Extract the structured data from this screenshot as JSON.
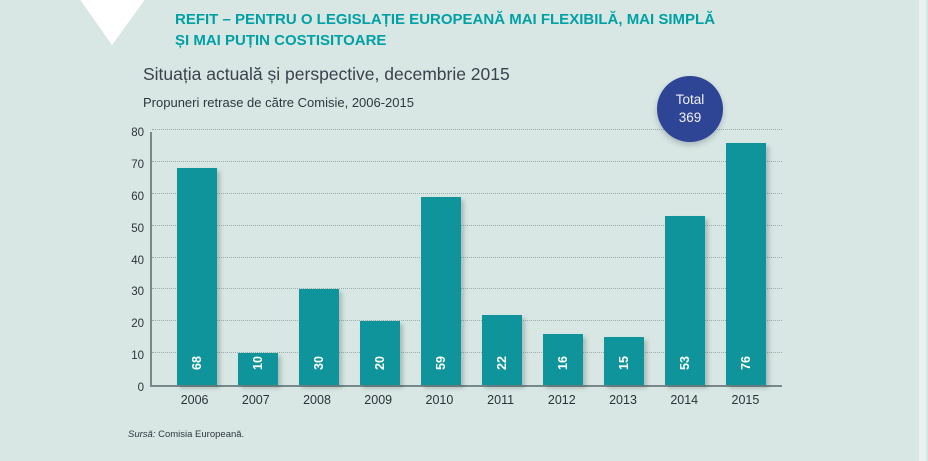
{
  "header": {
    "title_line1": "REFIT – PENTRU O LEGISLAȚIE EUROPEANĂ MAI FLEXIBILĂ, MAI SIMPLĂ",
    "title_line2": "ȘI MAI PUȚIN COSTISITOARE",
    "subtitle": "Situația actuală și perspective, decembrie 2015"
  },
  "chart_data": {
    "type": "bar",
    "title": "Propuneri retrase de către Comisie, 2006-2015",
    "categories": [
      "2006",
      "2007",
      "2008",
      "2009",
      "2010",
      "2011",
      "2012",
      "2013",
      "2014",
      "2015"
    ],
    "values": [
      68,
      10,
      30,
      20,
      59,
      22,
      16,
      15,
      53,
      76
    ],
    "xlabel": "",
    "ylabel": "",
    "ylim": [
      0,
      80
    ],
    "yticks": [
      0,
      10,
      20,
      30,
      40,
      50,
      60,
      70,
      80
    ],
    "grid": "horizontal dotted",
    "legend": "none",
    "bar_value_label_style": "white, bold, rotated 90° counterclockwise, inside bar near bottom"
  },
  "badge": {
    "label": "Total",
    "value": "369"
  },
  "source": {
    "label": "Sursă:",
    "text": " Comisia Europeană."
  },
  "colors": {
    "background": "#d8e7e3",
    "title_teal": "#00a1a5",
    "bar_teal": "#10949c",
    "badge_navy": "#2e4494",
    "text_dark": "#333b44",
    "gridline": "#97aeaa",
    "axis": "#76888a",
    "bar_value_text": "#ffffff",
    "diamond": "#ffffff"
  }
}
